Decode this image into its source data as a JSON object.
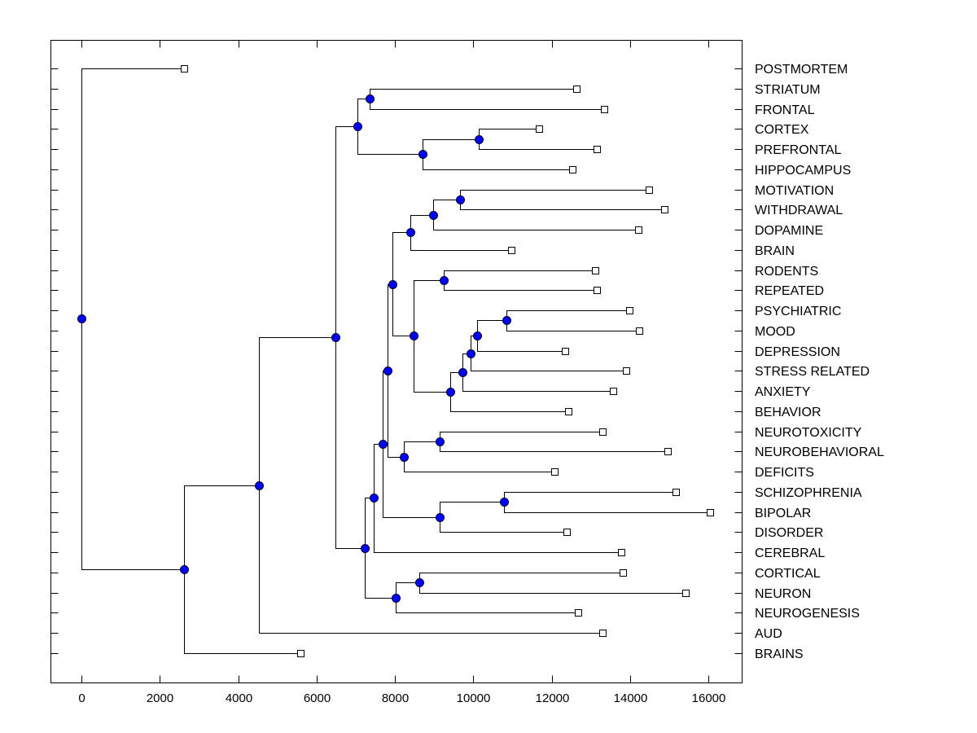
{
  "chart_data": {
    "type": "dendrogram",
    "title": "",
    "xlabel": "",
    "ylabel": "",
    "xlim": [
      -800,
      16900
    ],
    "x_ticks": [
      0,
      2000,
      4000,
      6000,
      8000,
      10000,
      12000,
      14000,
      16000
    ],
    "grid": false,
    "orientation": "horizontal (root at left, leaves at right)",
    "colors": {
      "node_fill": "#0000ff",
      "leaf_fill": "#ffffff",
      "line": "#000000"
    },
    "leaves": [
      {
        "id": "POSTMORTEM",
        "label": "POSTMORTEM",
        "x": 2620
      },
      {
        "id": "STRIATUM",
        "label": "STRIATUM",
        "x": 12630
      },
      {
        "id": "FRONTAL",
        "label": "FRONTAL",
        "x": 13340
      },
      {
        "id": "CORTEX",
        "label": "CORTEX",
        "x": 11680
      },
      {
        "id": "PREFRONTAL",
        "label": "PREFRONTAL",
        "x": 13150
      },
      {
        "id": "HIPPOCAMPUS",
        "label": "HIPPOCAMPUS",
        "x": 12530
      },
      {
        "id": "MOTIVATION",
        "label": "MOTIVATION",
        "x": 14480
      },
      {
        "id": "WITHDRAWAL",
        "label": "WITHDRAWAL",
        "x": 14880
      },
      {
        "id": "DOPAMINE",
        "label": "DOPAMINE",
        "x": 14210
      },
      {
        "id": "BRAIN",
        "label": "BRAIN",
        "x": 10970
      },
      {
        "id": "RODENTS",
        "label": "RODENTS",
        "x": 13110
      },
      {
        "id": "REPEATED",
        "label": "REPEATED",
        "x": 13150
      },
      {
        "id": "PSYCHIATRIC",
        "label": "PSYCHIATRIC",
        "x": 13980
      },
      {
        "id": "MOOD",
        "label": "MOOD",
        "x": 14230
      },
      {
        "id": "DEPRESSION",
        "label": "DEPRESSION",
        "x": 12340
      },
      {
        "id": "STRESS_RELATED",
        "label": "STRESS RELATED",
        "x": 13900
      },
      {
        "id": "ANXIETY",
        "label": "ANXIETY",
        "x": 13570
      },
      {
        "id": "BEHAVIOR",
        "label": "BEHAVIOR",
        "x": 12420
      },
      {
        "id": "NEUROTOXICITY",
        "label": "NEUROTOXICITY",
        "x": 13300
      },
      {
        "id": "NEUROBEHAVIORAL",
        "label": "NEUROBEHAVIORAL",
        "x": 14960
      },
      {
        "id": "DEFICITS",
        "label": "DEFICITS",
        "x": 12070
      },
      {
        "id": "SCHIZOPHRENIA",
        "label": "SCHIZOPHRENIA",
        "x": 15170
      },
      {
        "id": "BIPOLAR",
        "label": "BIPOLAR",
        "x": 16040
      },
      {
        "id": "DISORDER",
        "label": "DISORDER",
        "x": 12380
      },
      {
        "id": "CEREBRAL",
        "label": "CEREBRAL",
        "x": 13780
      },
      {
        "id": "CORTICAL",
        "label": "CORTICAL",
        "x": 13820
      },
      {
        "id": "NEURON",
        "label": "NEURON",
        "x": 15420
      },
      {
        "id": "NEUROGENESIS",
        "label": "NEUROGENESIS",
        "x": 12670
      },
      {
        "id": "AUD",
        "label": "AUD",
        "x": 13300
      },
      {
        "id": "BRAINS",
        "label": "BRAINS",
        "x": 5590
      }
    ],
    "nodes": [
      {
        "id": "n_root",
        "x": 0,
        "children": [
          "POSTMORTEM",
          "n2620"
        ]
      },
      {
        "id": "n2620",
        "x": 2620,
        "children": [
          "n4530",
          "BRAINS"
        ]
      },
      {
        "id": "n4530",
        "x": 4530,
        "children": [
          "n6480",
          "AUD"
        ]
      },
      {
        "id": "n6480",
        "x": 6480,
        "children": [
          "n7040",
          "n7230"
        ]
      },
      {
        "id": "n7040",
        "x": 7040,
        "children": [
          "n7360",
          "n8710"
        ]
      },
      {
        "id": "n7360",
        "x": 7360,
        "children": [
          "STRIATUM",
          "FRONTAL"
        ]
      },
      {
        "id": "n8710",
        "x": 8710,
        "children": [
          "n10140",
          "HIPPOCAMPUS"
        ]
      },
      {
        "id": "n10140",
        "x": 10140,
        "children": [
          "CORTEX",
          "PREFRONTAL"
        ]
      },
      {
        "id": "n7230",
        "x": 7230,
        "children": [
          "n7460",
          "n8020"
        ]
      },
      {
        "id": "n7460",
        "x": 7460,
        "children": [
          "n7690",
          "CEREBRAL"
        ]
      },
      {
        "id": "n7690",
        "x": 7690,
        "children": [
          "n7810",
          "n9140b"
        ]
      },
      {
        "id": "n7810",
        "x": 7810,
        "children": [
          "n7940",
          "n8230"
        ]
      },
      {
        "id": "n7940",
        "x": 7940,
        "children": [
          "n8390",
          "n8480"
        ]
      },
      {
        "id": "n8390",
        "x": 8390,
        "children": [
          "n8980",
          "BRAIN"
        ]
      },
      {
        "id": "n8980",
        "x": 8980,
        "children": [
          "n9660",
          "DOPAMINE"
        ]
      },
      {
        "id": "n9660",
        "x": 9660,
        "children": [
          "MOTIVATION",
          "WITHDRAWAL"
        ]
      },
      {
        "id": "n8480",
        "x": 8480,
        "children": [
          "n9250",
          "n9410"
        ]
      },
      {
        "id": "n9250",
        "x": 9250,
        "children": [
          "RODENTS",
          "REPEATED"
        ]
      },
      {
        "id": "n9410",
        "x": 9410,
        "children": [
          "n9720",
          "BEHAVIOR"
        ]
      },
      {
        "id": "n9720",
        "x": 9720,
        "children": [
          "n9930",
          "ANXIETY"
        ]
      },
      {
        "id": "n9930",
        "x": 9930,
        "children": [
          "n10100",
          "STRESS_RELATED"
        ]
      },
      {
        "id": "n10100",
        "x": 10100,
        "children": [
          "n10850",
          "DEPRESSION"
        ]
      },
      {
        "id": "n10850",
        "x": 10850,
        "children": [
          "PSYCHIATRIC",
          "MOOD"
        ]
      },
      {
        "id": "n8230",
        "x": 8230,
        "children": [
          "n9140a",
          "DEFICITS"
        ]
      },
      {
        "id": "n9140a",
        "x": 9140,
        "children": [
          "NEUROTOXICITY",
          "NEUROBEHAVIORAL"
        ]
      },
      {
        "id": "n9140b",
        "x": 9140,
        "children": [
          "n10780",
          "DISORDER"
        ]
      },
      {
        "id": "n10780",
        "x": 10780,
        "children": [
          "SCHIZOPHRENIA",
          "BIPOLAR"
        ]
      },
      {
        "id": "n8020",
        "x": 8020,
        "children": [
          "n8620",
          "NEUROGENESIS"
        ]
      },
      {
        "id": "n8620",
        "x": 8620,
        "children": [
          "CORTICAL",
          "NEURON"
        ]
      }
    ]
  }
}
